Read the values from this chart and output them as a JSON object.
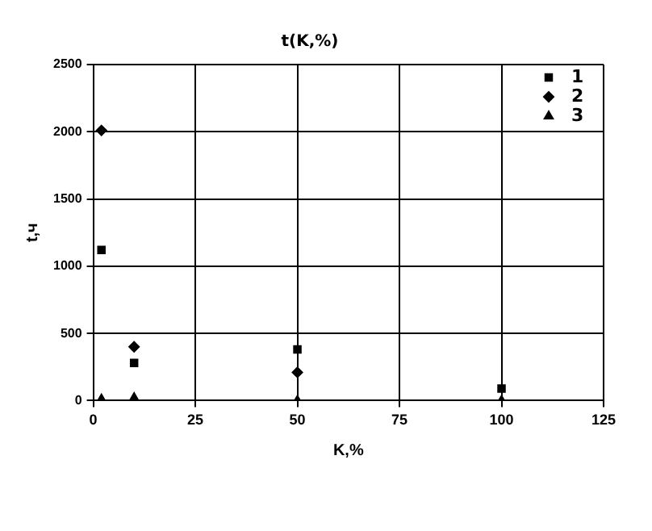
{
  "chart_data": {
    "type": "scatter",
    "title": "t(K,%)",
    "xlabel": "K,%",
    "ylabel": "t,ч",
    "xlim": [
      0,
      125
    ],
    "xticks": [
      0,
      25,
      50,
      75,
      100,
      125
    ],
    "ylim": [
      0,
      2500
    ],
    "yticks": [
      0,
      500,
      1000,
      1500,
      2000,
      2500
    ],
    "grid": true,
    "legend": "top right",
    "series": [
      {
        "name": "1",
        "color": "#000000",
        "marker": "square",
        "x": [
          2,
          10,
          50,
          100
        ],
        "values": [
          1120,
          280,
          380,
          90
        ]
      },
      {
        "name": "2",
        "color": "#000000",
        "marker": "diamond",
        "x": [
          2,
          10,
          50
        ],
        "values": [
          2010,
          400,
          210
        ]
      },
      {
        "name": "3",
        "color": "#000000",
        "marker": "triangle",
        "x": [
          2,
          10,
          50,
          100
        ],
        "values": [
          10,
          20,
          0,
          0
        ]
      }
    ]
  }
}
